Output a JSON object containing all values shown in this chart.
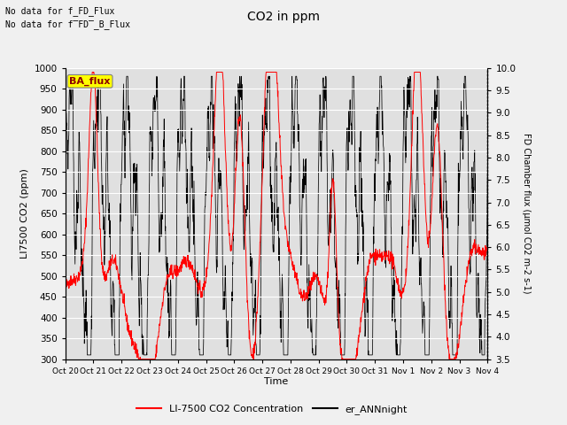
{
  "title": "CO2 in ppm",
  "ylabel_left": "LI7500 CO2 (ppm)",
  "ylabel_right": "FD Chamber flux (μmol CO2 m-2 s-1)",
  "xlabel": "Time",
  "ylim_left": [
    300,
    1000
  ],
  "ylim_right": [
    3.5,
    10.0
  ],
  "yticks_left": [
    300,
    350,
    400,
    450,
    500,
    550,
    600,
    650,
    700,
    750,
    800,
    850,
    900,
    950,
    1000
  ],
  "yticks_right": [
    3.5,
    4.0,
    4.5,
    5.0,
    5.5,
    6.0,
    6.5,
    7.0,
    7.5,
    8.0,
    8.5,
    9.0,
    9.5,
    10.0
  ],
  "xtick_labels": [
    "Oct 20",
    "Oct 21",
    "Oct 22",
    "Oct 23",
    "Oct 24",
    "Oct 25",
    "Oct 26",
    "Oct 27",
    "Oct 28",
    "Oct 29",
    "Oct 30",
    "Oct 31",
    "Nov 1",
    "Nov 2",
    "Nov 3",
    "Nov 4"
  ],
  "text_no_data_1": "No data for f_FD_Flux",
  "text_no_data_2": "No data for f̅FD̅_B_Flux",
  "legend_entries": [
    "LI-7500 CO2 Concentration",
    "er_ANNnight"
  ],
  "ba_flux_label": "BA_flux",
  "fig_facecolor": "#f0f0f0",
  "plot_facecolor": "#e0e0e0",
  "grid_color": "#ffffff",
  "seed": 42,
  "n_points": 1500
}
